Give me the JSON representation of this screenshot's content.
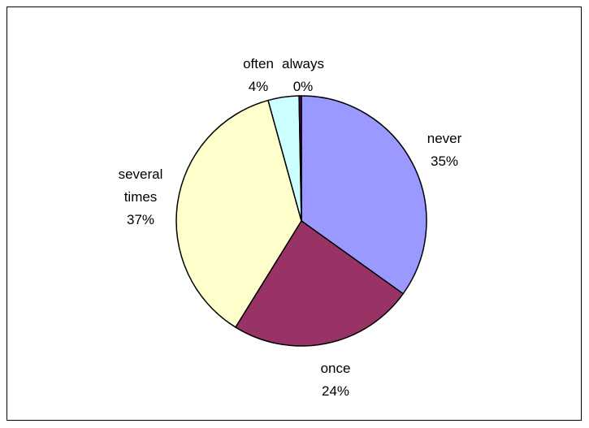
{
  "chart_data": {
    "type": "pie",
    "title": "",
    "slices": [
      {
        "label": "never",
        "value": 35,
        "label_lines": [
          "never"
        ],
        "value_text": "35%",
        "color": "#9999ff"
      },
      {
        "label": "once",
        "value": 24,
        "label_lines": [
          "once"
        ],
        "value_text": "24%",
        "color": "#993366"
      },
      {
        "label": "several times",
        "value": 37,
        "label_lines": [
          "several",
          "times"
        ],
        "value_text": "37%",
        "color": "#ffffcc"
      },
      {
        "label": "often",
        "value": 4,
        "label_lines": [
          "often"
        ],
        "value_text": "4%",
        "color": "#ccffff"
      },
      {
        "label": "always",
        "value": 0.3,
        "label_lines": [
          "always"
        ],
        "value_text": "0%",
        "color": "#660066"
      }
    ],
    "start_angle_deg": 0,
    "direction": "clockwise",
    "legend": "none",
    "slice_outline": "#000000"
  }
}
